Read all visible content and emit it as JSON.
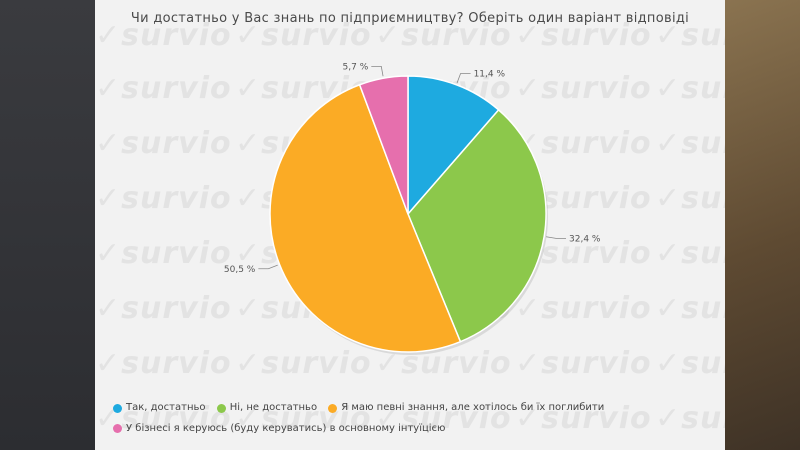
{
  "watermark": "survio",
  "chart_data": {
    "type": "pie",
    "title": "Чи достатньо у Вас знань по підприємництву? Оберіть один варіант відповіді",
    "slices": [
      {
        "label": "Так, достатньо",
        "value": 11.4,
        "value_label": "11,4 %",
        "color": "#1eaae0"
      },
      {
        "label": "Ні, не достатньо",
        "value": 32.4,
        "value_label": "32,4 %",
        "color": "#8cc84b"
      },
      {
        "label": "Я маю певні знання, але хотілось би їх поглибити",
        "value": 50.5,
        "value_label": "50,5 %",
        "color": "#fbab25"
      },
      {
        "label": "У бізнесі я керуюсь (буду керуватись) в основному інтуїцією",
        "value": 5.7,
        "value_label": "5,7 %",
        "color": "#e66fad"
      }
    ],
    "legend_position": "bottom-left"
  }
}
